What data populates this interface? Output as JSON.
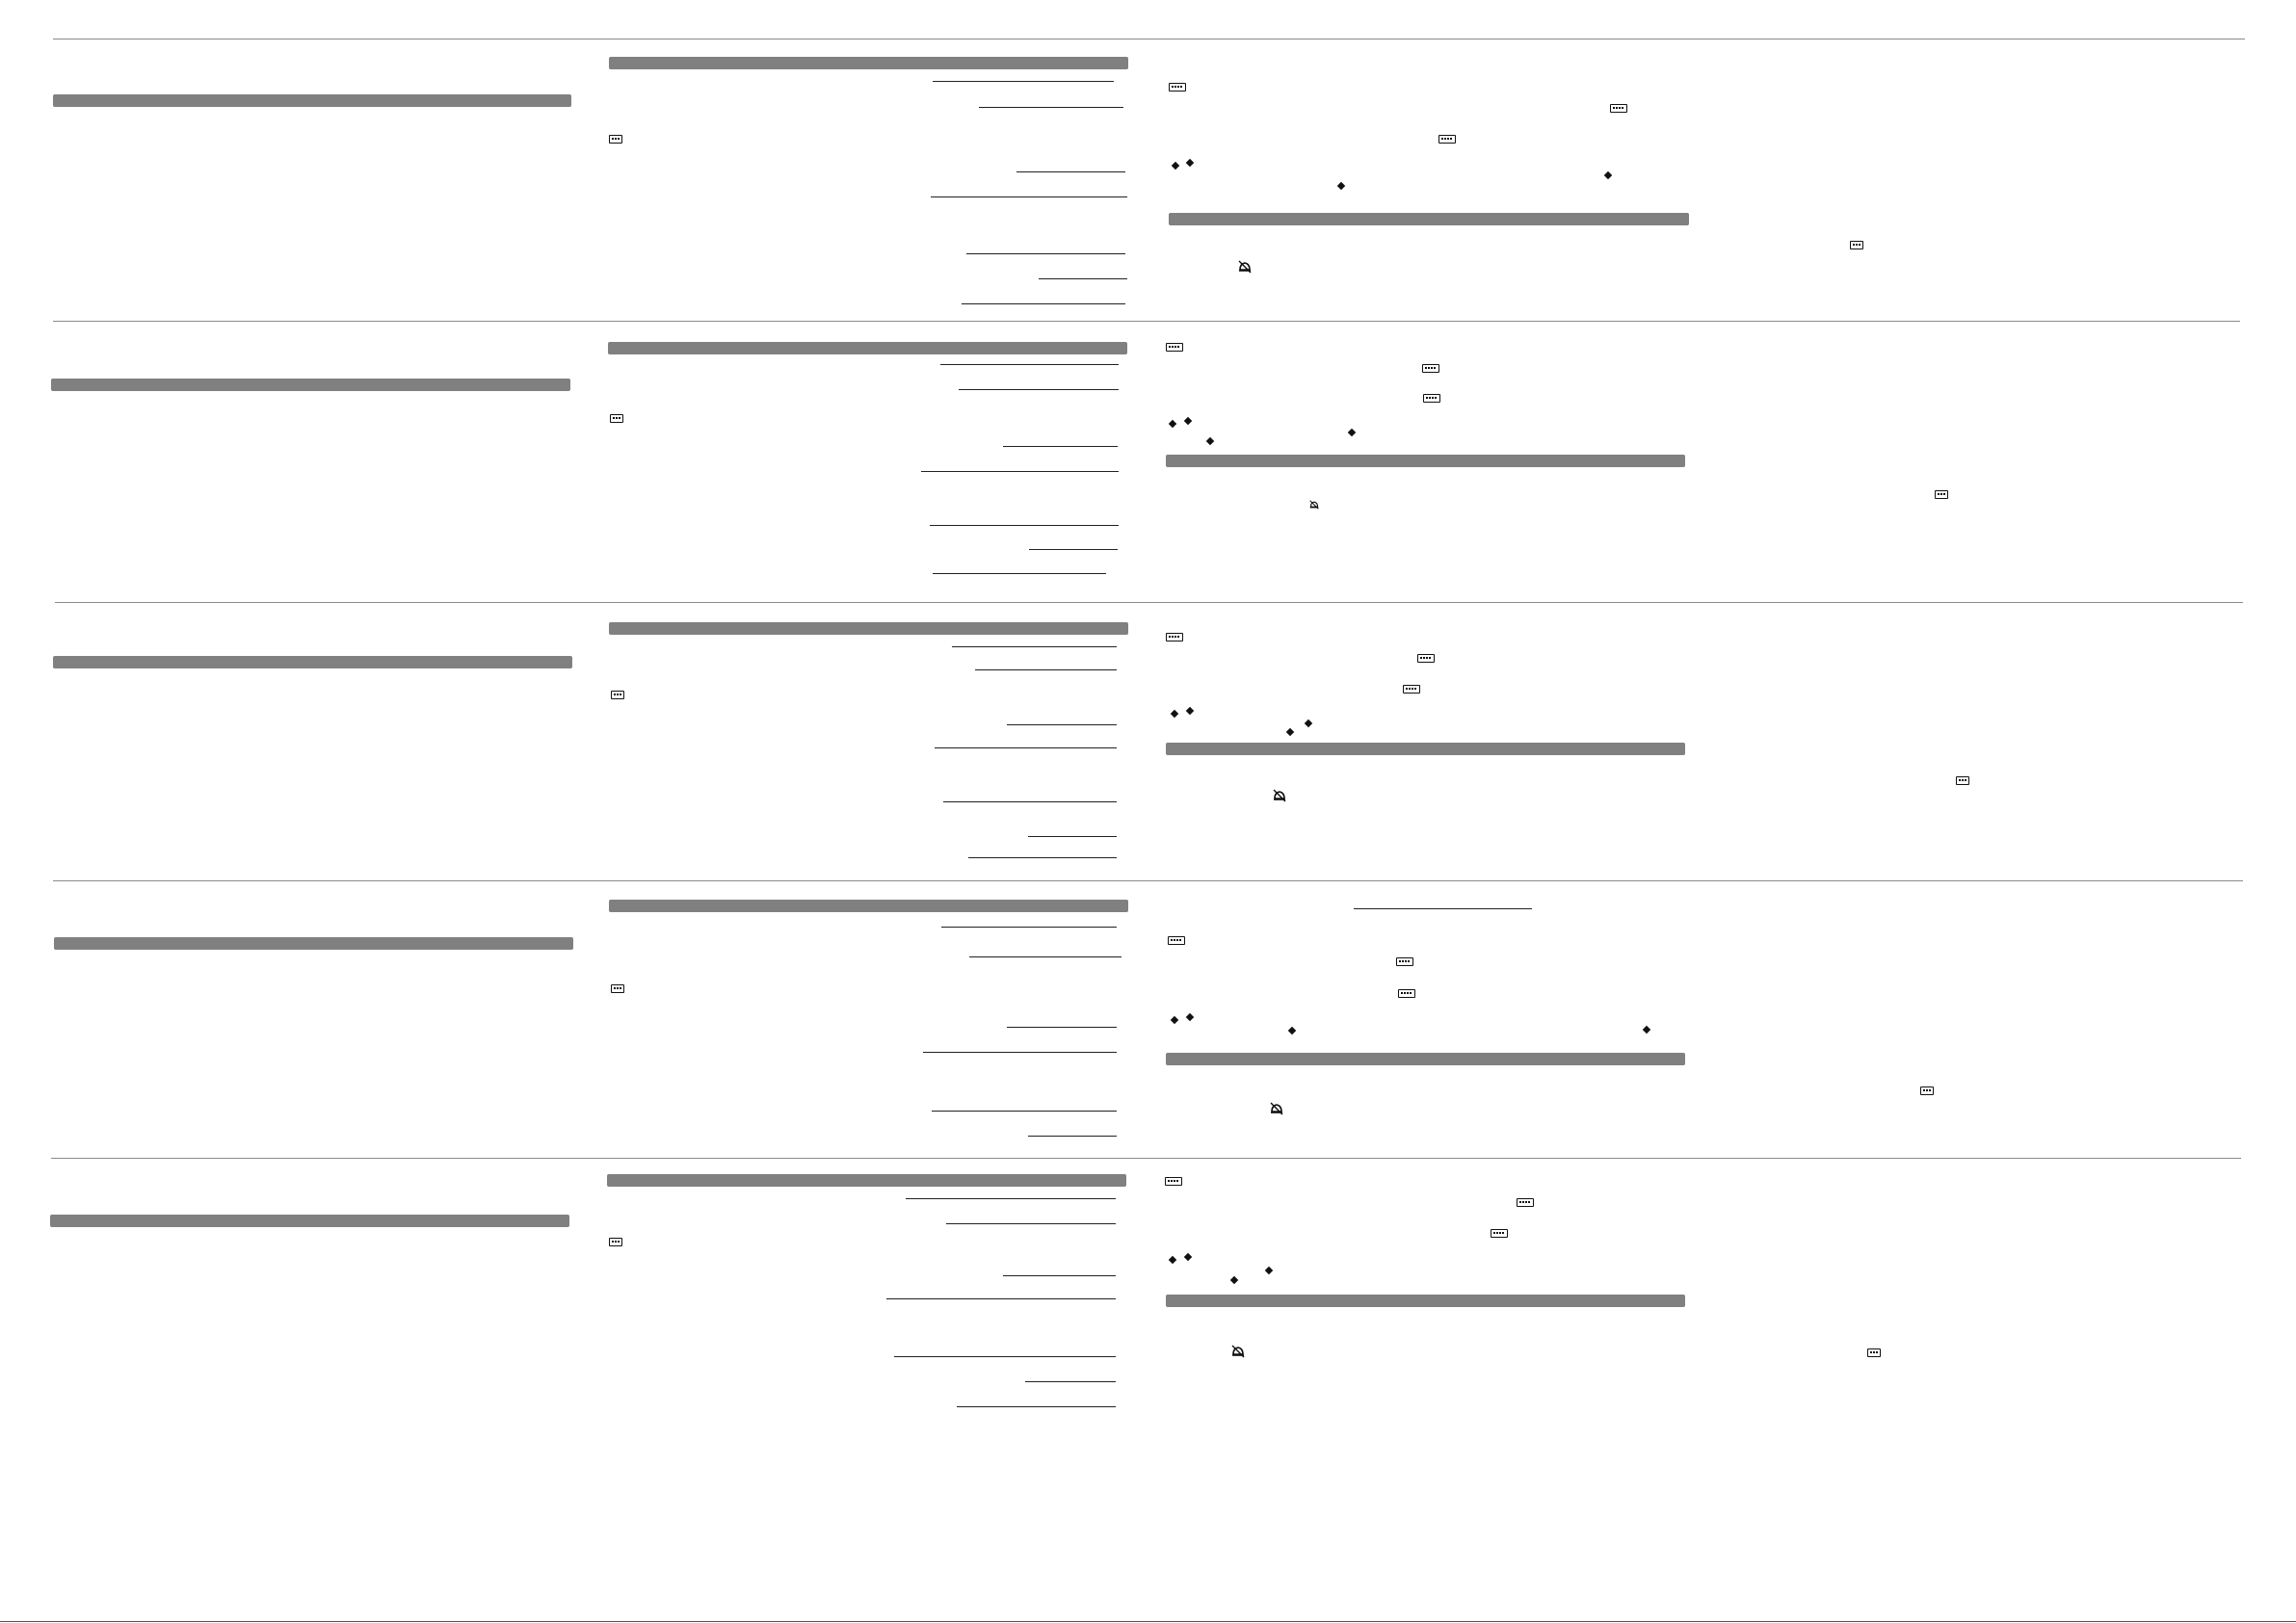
{
  "page": {
    "background": "#ffffff",
    "rule_color": "#8a8a8a",
    "bar_color": "#808080"
  },
  "sections": [
    {
      "left_heading": "",
      "middle_heading": "",
      "right_heading_1": "",
      "right_heading_2": "",
      "icons": [
        "scale-icon",
        "check-icon",
        "diamond-icon",
        "bell-off-icon"
      ]
    },
    {
      "left_heading": "",
      "middle_heading": "",
      "right_heading_1": "",
      "right_heading_2": "",
      "icons": [
        "scale-icon",
        "check-icon",
        "diamond-icon",
        "bell-off-icon"
      ]
    },
    {
      "left_heading": "",
      "middle_heading": "",
      "right_heading_1": "",
      "right_heading_2": "",
      "icons": [
        "scale-icon",
        "check-icon",
        "diamond-icon",
        "bell-off-icon"
      ]
    },
    {
      "left_heading": "",
      "middle_heading": "",
      "right_heading_1": "",
      "right_heading_2": "",
      "icons": [
        "scale-icon",
        "check-icon",
        "diamond-icon",
        "bell-off-icon"
      ]
    },
    {
      "left_heading": "",
      "middle_heading": "",
      "right_heading_1": "",
      "right_heading_2": "",
      "icons": [
        "scale-icon",
        "check-icon",
        "diamond-icon",
        "bell-off-icon"
      ]
    }
  ]
}
